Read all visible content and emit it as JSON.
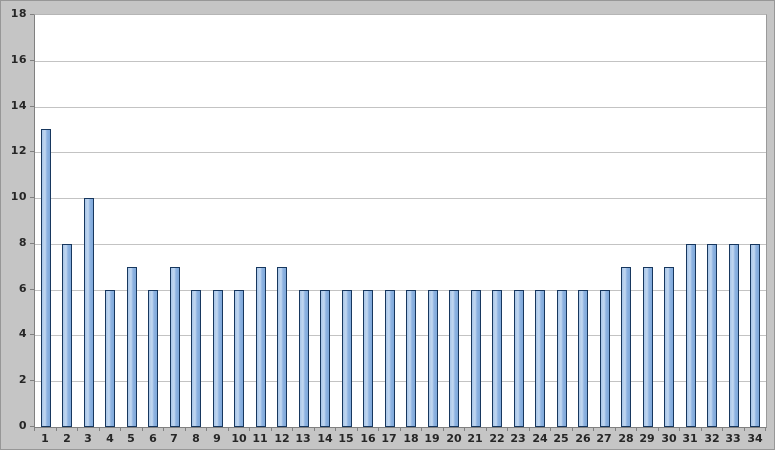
{
  "chart_data": {
    "type": "bar",
    "title": "",
    "xlabel": "",
    "ylabel": "",
    "categories": [
      "1",
      "2",
      "3",
      "4",
      "5",
      "6",
      "7",
      "8",
      "9",
      "10",
      "11",
      "12",
      "13",
      "14",
      "15",
      "16",
      "17",
      "18",
      "19",
      "20",
      "21",
      "22",
      "23",
      "24",
      "25",
      "26",
      "27",
      "28",
      "29",
      "30",
      "31",
      "32",
      "33",
      "34"
    ],
    "values": [
      13,
      8,
      10,
      6,
      7,
      6,
      7,
      6,
      6,
      6,
      7,
      7,
      6,
      6,
      6,
      6,
      6,
      6,
      6,
      6,
      6,
      6,
      6,
      6,
      6,
      6,
      6,
      7,
      7,
      7,
      8,
      8,
      8,
      8
    ],
    "ylim": [
      0,
      18
    ],
    "yticks": [
      0,
      2,
      4,
      6,
      8,
      10,
      12,
      14,
      16,
      18
    ],
    "grid": true,
    "legend": false,
    "colors": {
      "chart_background": "#c5c5c5",
      "plot_background": "#ffffff",
      "gridline": "#c3c3c3",
      "axis_line": "#808080",
      "bar_border": "#17375e",
      "bar_fill_light": "#c3d8f1",
      "bar_fill_dark": "#7ea8da",
      "label_text": "#262626"
    }
  }
}
